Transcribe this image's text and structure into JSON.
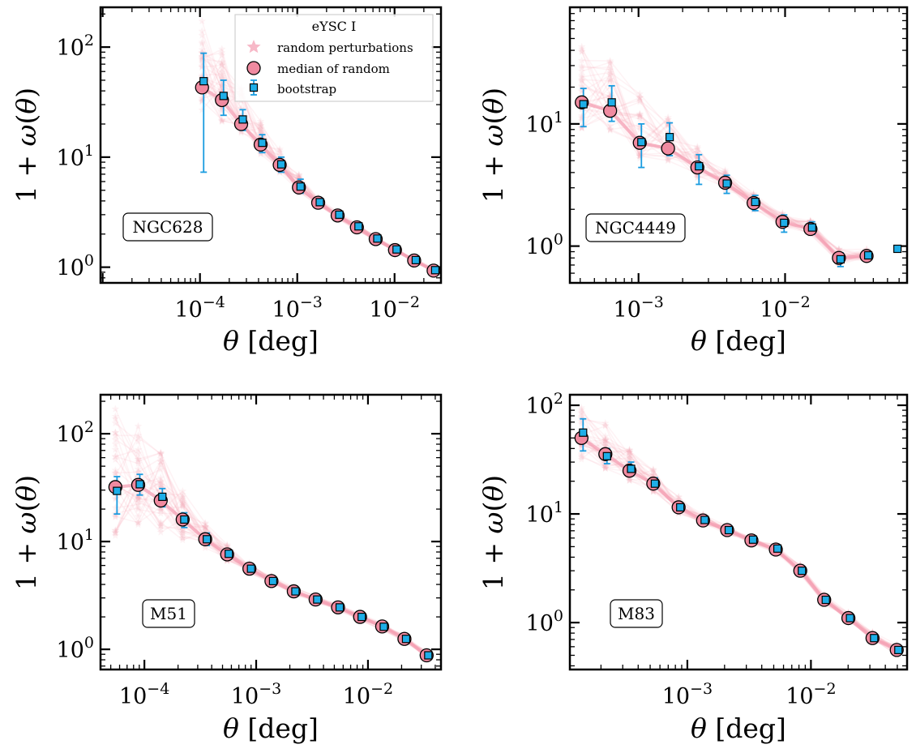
{
  "figure": {
    "colors": {
      "random": "#f4a0b4",
      "median_fill": "#f08aa0",
      "boot_fill": "#1eaee8",
      "boot_err": "#1a9ce0",
      "edge": "#000000"
    }
  },
  "chart_data": [
    {
      "type": "scatter",
      "panel": "NGC628",
      "label": "NGC628",
      "xlabel": "θ [deg]",
      "ylabel": "1 + ω(θ)",
      "xscale": "log",
      "yscale": "log",
      "xlim": [
        9.5e-06,
        0.03
      ],
      "ylim": [
        0.72,
        230
      ],
      "xticks": [
        0.0001,
        0.001,
        0.01
      ],
      "xtick_labels": [
        {
          "b": "10",
          "e": "−4"
        },
        {
          "b": "10",
          "e": "−3"
        },
        {
          "b": "10",
          "e": "−2"
        }
      ],
      "yticks": [
        1,
        10,
        100
      ],
      "ytick_labels": [
        {
          "b": "10",
          "e": "0"
        },
        {
          "b": "10",
          "e": "1"
        },
        {
          "b": "10",
          "e": "2"
        }
      ],
      "legend": {
        "title": "eYSC I",
        "position": "top-right",
        "entries": [
          "random perturbations",
          "median of random",
          "bootstrap"
        ]
      },
      "x": [
        0.000105,
        0.000168,
        0.000265,
        0.00042,
        0.00066,
        0.00104,
        0.00164,
        0.0026,
        0.0041,
        0.0064,
        0.0101,
        0.0159,
        0.0252
      ],
      "median_of_random": [
        43,
        33,
        20,
        13,
        8.5,
        5.3,
        3.85,
        2.95,
        2.3,
        1.8,
        1.43,
        1.15,
        0.93
      ],
      "bootstrap": [
        49,
        36,
        22,
        13.5,
        8.6,
        5.4,
        3.9,
        3.0,
        2.35,
        1.82,
        1.45,
        1.16,
        0.94
      ],
      "bootstrap_err_low": [
        7.3,
        24,
        17.5,
        11,
        7.3,
        4.7,
        3.6,
        2.8,
        2.2,
        1.72,
        1.38,
        1.1,
        0.9
      ],
      "bootstrap_err_high": [
        88,
        50,
        27,
        16,
        10,
        6.3,
        4.2,
        3.15,
        2.45,
        1.92,
        1.52,
        1.2,
        0.98
      ],
      "random_spread_low": [
        25,
        20,
        15,
        10.5,
        7.2,
        4.7,
        3.55,
        2.75,
        2.15,
        1.7,
        1.36,
        1.09,
        0.88
      ],
      "random_spread_high": [
        175,
        110,
        45,
        22,
        12,
        7,
        4.4,
        3.25,
        2.5,
        1.95,
        1.53,
        1.22,
        0.99
      ]
    },
    {
      "type": "scatter",
      "panel": "NGC4449",
      "label": "NGC4449",
      "xlabel": "θ [deg]",
      "ylabel": "1 + ω(θ)",
      "xscale": "log",
      "yscale": "log",
      "xlim": [
        0.00034,
        0.068
      ],
      "ylim": [
        0.5,
        90
      ],
      "xticks": [
        0.001,
        0.01
      ],
      "xtick_labels": [
        {
          "b": "10",
          "e": "−3"
        },
        {
          "b": "10",
          "e": "−2"
        }
      ],
      "yticks": [
        1,
        10
      ],
      "ytick_labels": [
        {
          "b": "10",
          "e": "0"
        },
        {
          "b": "10",
          "e": "1"
        }
      ],
      "x": [
        0.00041,
        0.00064,
        0.00102,
        0.00159,
        0.00252,
        0.0039,
        0.0061,
        0.0096,
        0.0149,
        0.0233,
        0.036,
        0.057
      ],
      "median_of_random": [
        15,
        12.8,
        7,
        6.3,
        4.4,
        3.3,
        2.25,
        1.58,
        1.38,
        0.8,
        0.83,
        null
      ],
      "bootstrap": [
        14.5,
        15,
        7.1,
        7.8,
        4.5,
        3.25,
        2.3,
        1.55,
        1.42,
        0.78,
        0.84,
        0.95
      ],
      "bootstrap_err_low": [
        9.5,
        10.5,
        4.4,
        5.5,
        3.2,
        2.7,
        1.95,
        1.3,
        1.25,
        0.68,
        0.78,
        0.95
      ],
      "bootstrap_err_high": [
        19.5,
        20.5,
        10,
        10.2,
        5.6,
        3.8,
        2.6,
        1.8,
        1.58,
        0.88,
        0.9,
        0.95
      ],
      "random_spread_low": [
        9,
        8.5,
        5,
        5,
        3.6,
        2.8,
        1.95,
        1.38,
        1.2,
        0.7,
        0.76,
        null
      ],
      "random_spread_high": [
        55,
        36,
        18,
        12,
        6.5,
        4.2,
        2.7,
        1.9,
        1.62,
        0.95,
        0.95,
        null
      ]
    },
    {
      "type": "scatter",
      "panel": "M51",
      "label": "M51",
      "xlabel": "θ [deg]",
      "ylabel": "1 + ω(θ)",
      "xscale": "log",
      "yscale": "log",
      "xlim": [
        4.05e-05,
        0.045
      ],
      "ylim": [
        0.65,
        230
      ],
      "xticks": [
        0.0001,
        0.001,
        0.01
      ],
      "xtick_labels": [
        {
          "b": "10",
          "e": "−4"
        },
        {
          "b": "10",
          "e": "−3"
        },
        {
          "b": "10",
          "e": "−2"
        }
      ],
      "yticks": [
        1,
        10,
        100
      ],
      "ytick_labels": [
        {
          "b": "10",
          "e": "0"
        },
        {
          "b": "10",
          "e": "1"
        },
        {
          "b": "10",
          "e": "2"
        }
      ],
      "x": [
        5.5e-05,
        8.8e-05,
        0.00014,
        0.00022,
        0.00035,
        0.00055,
        0.00087,
        0.00137,
        0.00217,
        0.0034,
        0.0054,
        0.0085,
        0.0134,
        0.0212,
        0.0335
      ],
      "median_of_random": [
        32,
        33.5,
        24,
        16,
        10.5,
        7.6,
        5.6,
        4.3,
        3.45,
        2.9,
        2.45,
        2.0,
        1.63,
        1.25,
        0.88
      ],
      "bootstrap": [
        29.5,
        34,
        26,
        16,
        10.5,
        7.7,
        5.6,
        4.3,
        3.45,
        2.9,
        2.45,
        2.0,
        1.62,
        1.25,
        0.88
      ],
      "bootstrap_err_low": [
        18,
        27,
        21,
        13.5,
        9.2,
        7.0,
        5.2,
        4.0,
        3.25,
        2.75,
        2.33,
        1.9,
        1.55,
        1.18,
        0.83
      ],
      "bootstrap_err_high": [
        40,
        42,
        31,
        18.5,
        12,
        8.4,
        6.0,
        4.6,
        3.65,
        3.05,
        2.58,
        2.1,
        1.7,
        1.32,
        0.93
      ],
      "random_spread_low": [
        10,
        14,
        12,
        10,
        8.6,
        6.6,
        5.0,
        3.9,
        3.15,
        2.68,
        2.27,
        1.85,
        1.5,
        1.15,
        0.8
      ],
      "random_spread_high": [
        180,
        120,
        70,
        30,
        15,
        9.5,
        6.4,
        4.8,
        3.8,
        3.15,
        2.65,
        2.15,
        1.76,
        1.37,
        0.96
      ]
    },
    {
      "type": "scatter",
      "panel": "M83",
      "label": "M83",
      "xlabel": "θ [deg]",
      "ylabel": "1 + ω(θ)",
      "xscale": "log",
      "yscale": "log",
      "xlim": [
        0.000112,
        0.06
      ],
      "ylim": [
        0.37,
        125
      ],
      "xticks": [
        0.001,
        0.01
      ],
      "xtick_labels": [
        {
          "b": "10",
          "e": "−3"
        },
        {
          "b": "10",
          "e": "−2"
        }
      ],
      "yticks": [
        1,
        10,
        100
      ],
      "ytick_labels": [
        {
          "b": "10",
          "e": "0"
        },
        {
          "b": "10",
          "e": "1"
        },
        {
          "b": "10",
          "e": "2"
        }
      ],
      "x": [
        0.000139,
        0.000217,
        0.00034,
        0.00053,
        0.00085,
        0.00134,
        0.0021,
        0.0033,
        0.0052,
        0.0082,
        0.0128,
        0.0201,
        0.0315,
        0.0495
      ],
      "median_of_random": [
        50,
        35.5,
        25,
        19,
        11.5,
        8.7,
        7.1,
        5.7,
        4.7,
        3.0,
        1.62,
        1.1,
        0.72,
        0.56
      ],
      "bootstrap": [
        56,
        34,
        26,
        19,
        11.5,
        8.8,
        7.1,
        5.8,
        4.8,
        3.0,
        1.62,
        1.1,
        0.72,
        0.56
      ],
      "bootstrap_err_low": [
        38,
        29,
        22.5,
        17,
        10.5,
        8.2,
        6.6,
        5.4,
        4.45,
        2.75,
        1.5,
        1.02,
        0.67,
        0.52
      ],
      "bootstrap_err_high": [
        75,
        40,
        30,
        21.5,
        12.5,
        9.5,
        7.6,
        6.2,
        5.15,
        3.25,
        1.75,
        1.18,
        0.77,
        0.6
      ],
      "random_spread_low": [
        30,
        25,
        20,
        15.5,
        10,
        7.8,
        6.4,
        5.2,
        4.3,
        2.7,
        1.45,
        0.98,
        0.65,
        0.5
      ],
      "random_spread_high": [
        95,
        70,
        40,
        26,
        14.5,
        10,
        8.0,
        6.4,
        5.4,
        3.4,
        1.85,
        1.24,
        0.82,
        0.63
      ]
    }
  ]
}
